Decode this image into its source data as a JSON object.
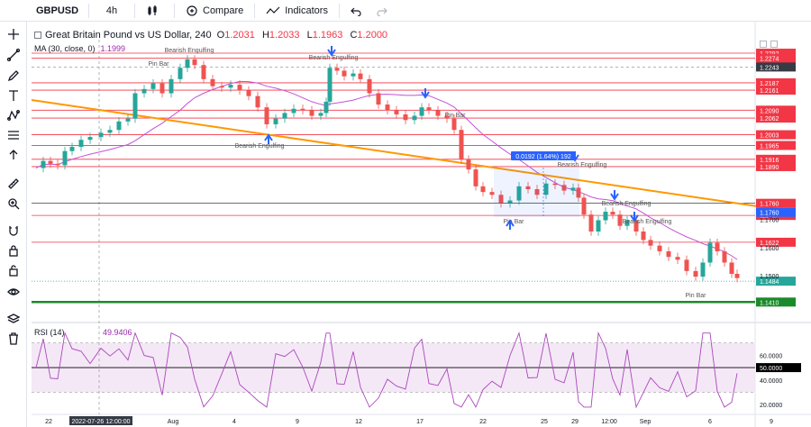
{
  "toolbar": {
    "symbol": "GBPUSD",
    "interval": "4h",
    "compare_label": "Compare",
    "indicators_label": "Indicators"
  },
  "legend": {
    "title": "Great Britain Pound vs US Dollar, 240",
    "open_label": "O",
    "open": "1.2031",
    "high_label": "H",
    "high": "1.2033",
    "low_label": "L",
    "low": "1.1963",
    "close_label": "C",
    "close": "1.2000",
    "ma_label": "MA (30, close, 0)",
    "ma_value": "1.1999"
  },
  "rsi_legend": {
    "label": "RSI (14)",
    "value": "49.9406"
  },
  "price_tags": {
    "red": [
      "1.2292",
      "1.2274",
      "1.2187",
      "1.2161",
      "1.2090",
      "1.2062",
      "1.2003",
      "1.1965",
      "1.1916",
      "1.1890",
      "1.1760",
      "1.1717",
      "1.1622"
    ],
    "dark": "1.2243",
    "blue": "1.1760",
    "teal": "1.1484",
    "green": "1.1410",
    "plain": [
      "1.1700",
      "1.1600",
      "1.1500"
    ],
    "rsi_black": "50.0000",
    "rsi_axis": [
      "60.0000",
      "40.0000",
      "20.0000"
    ]
  },
  "annotations": {
    "bearish_engulfing": "Bearish Engulfing",
    "pin_bar": "Pin Bar",
    "measure": "0.0192 (1.64%) 192"
  },
  "dates": [
    "22",
    "2022-07-26 12:00:00",
    "Aug",
    "4",
    "9",
    "12",
    "17",
    "22",
    "25",
    "29",
    "12:00",
    "Sep",
    "6",
    "9"
  ],
  "colors": {
    "up": "#26a69a",
    "down": "#ef5350",
    "level": "#f23645",
    "trend": "#ff9800",
    "ma": "#c452d6",
    "support": "#1b8a2a",
    "arrow": "#2962ff"
  },
  "chart_data": {
    "type": "candlestick",
    "symbol": "GBPUSD",
    "timeframe": "240",
    "ohlc_last": {
      "open": 1.2031,
      "high": 1.2033,
      "low": 1.1963,
      "close": 1.2
    },
    "ma_period": 30,
    "horizontal_levels": [
      1.2292,
      1.2274,
      1.2243,
      1.2187,
      1.2161,
      1.209,
      1.2062,
      1.2003,
      1.1965,
      1.1916,
      1.189,
      1.176,
      1.1717,
      1.1622,
      1.1484,
      1.141
    ],
    "rsi_levels": [
      70,
      50,
      30
    ]
  },
  "icons": [
    "cursor-icon",
    "trend-line-icon",
    "pencil-icon",
    "text-icon",
    "pattern-icon",
    "fib-icon",
    "arrow-icon",
    "ruler-icon",
    "zoom-icon",
    "magnet-icon",
    "lock-icon",
    "lock-all-icon",
    "eye-icon",
    "layers-icon",
    "trash-icon"
  ]
}
